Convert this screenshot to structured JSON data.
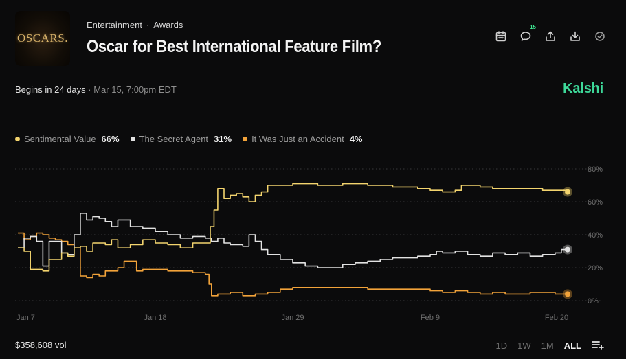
{
  "header": {
    "thumbnail_text": "OSCARS.",
    "category": "Entertainment",
    "subcategory": "Awards",
    "title": "Oscar for Best International Feature Film?",
    "comment_count": "15",
    "icons": [
      "calendar-icon",
      "comment-icon",
      "share-icon",
      "download-icon",
      "check-circle-icon"
    ]
  },
  "meta": {
    "begins": "Begins in 24 days",
    "separator": "·",
    "date": "Mar 15, 7:00pm EDT",
    "brand": "Kalshi"
  },
  "footer": {
    "volume": "$358,608 vol",
    "ranges": [
      "1D",
      "1W",
      "1M",
      "ALL"
    ],
    "active_range": "ALL"
  },
  "chart_data": {
    "type": "line",
    "ylim": [
      0,
      80
    ],
    "yticks": [
      "0%",
      "20%",
      "40%",
      "60%",
      "80%"
    ],
    "xlim": [
      0,
      44
    ],
    "xticks": [
      {
        "x": 0,
        "label": "Jan 7"
      },
      {
        "x": 11,
        "label": "Jan 18"
      },
      {
        "x": 22,
        "label": "Jan 29"
      },
      {
        "x": 33,
        "label": "Feb 9"
      },
      {
        "x": 44,
        "label": "Feb 20"
      }
    ],
    "grid": "dotted-horizontal",
    "legend": "top-left",
    "series": [
      {
        "name": "Sentimental Value",
        "label": "66%",
        "color": "#f3d46e",
        "values": [
          [
            0,
            32
          ],
          [
            0.5,
            30
          ],
          [
            1,
            19
          ],
          [
            1.5,
            19
          ],
          [
            2,
            18
          ],
          [
            2.5,
            25
          ],
          [
            3,
            25
          ],
          [
            3.5,
            29
          ],
          [
            4,
            27
          ],
          [
            4.5,
            32
          ],
          [
            5,
            33
          ],
          [
            5.5,
            30
          ],
          [
            6,
            35
          ],
          [
            7,
            34
          ],
          [
            7.5,
            37
          ],
          [
            8,
            32
          ],
          [
            9,
            34
          ],
          [
            10,
            37
          ],
          [
            11,
            35
          ],
          [
            12,
            34
          ],
          [
            13,
            32
          ],
          [
            14,
            35
          ],
          [
            15,
            35
          ],
          [
            15.4,
            45
          ],
          [
            15.7,
            55
          ],
          [
            16,
            68
          ],
          [
            16.5,
            62
          ],
          [
            17,
            64
          ],
          [
            17.5,
            65
          ],
          [
            18,
            63
          ],
          [
            18.5,
            60
          ],
          [
            19,
            64
          ],
          [
            19.5,
            66
          ],
          [
            20,
            70
          ],
          [
            22,
            71
          ],
          [
            24,
            70
          ],
          [
            26,
            71
          ],
          [
            28,
            70
          ],
          [
            30,
            69
          ],
          [
            32,
            68
          ],
          [
            33,
            67
          ],
          [
            34,
            66
          ],
          [
            35,
            67
          ],
          [
            35.5,
            70
          ],
          [
            37,
            69
          ],
          [
            38,
            68
          ],
          [
            40,
            68
          ],
          [
            42,
            67
          ],
          [
            43,
            67
          ],
          [
            44,
            66
          ]
        ]
      },
      {
        "name": "The Secret Agent",
        "label": "31%",
        "color": "#e2e2e2",
        "values": [
          [
            0,
            32
          ],
          [
            0.5,
            38
          ],
          [
            1,
            39
          ],
          [
            1.5,
            36
          ],
          [
            2,
            21
          ],
          [
            2.5,
            36
          ],
          [
            3,
            36
          ],
          [
            3.5,
            29
          ],
          [
            4,
            28
          ],
          [
            4.5,
            40
          ],
          [
            5,
            53
          ],
          [
            5.5,
            49
          ],
          [
            6,
            51
          ],
          [
            6.5,
            50
          ],
          [
            7,
            48
          ],
          [
            7.5,
            45
          ],
          [
            8,
            49
          ],
          [
            9,
            45
          ],
          [
            10,
            44
          ],
          [
            11,
            42
          ],
          [
            12,
            40
          ],
          [
            13,
            38
          ],
          [
            14,
            39
          ],
          [
            15,
            38
          ],
          [
            15.5,
            36
          ],
          [
            16,
            38
          ],
          [
            16.5,
            35
          ],
          [
            17,
            34
          ],
          [
            18,
            33
          ],
          [
            18.5,
            40
          ],
          [
            19,
            36
          ],
          [
            19.5,
            31
          ],
          [
            20,
            28
          ],
          [
            21,
            25
          ],
          [
            22,
            23
          ],
          [
            23,
            21
          ],
          [
            24,
            20
          ],
          [
            25,
            20
          ],
          [
            26,
            22
          ],
          [
            27,
            23
          ],
          [
            28,
            24
          ],
          [
            29,
            25
          ],
          [
            30,
            26
          ],
          [
            31,
            26
          ],
          [
            32,
            27
          ],
          [
            33,
            28
          ],
          [
            33.5,
            30
          ],
          [
            34,
            29
          ],
          [
            35,
            30
          ],
          [
            36,
            28
          ],
          [
            37,
            27
          ],
          [
            38,
            29
          ],
          [
            39,
            28
          ],
          [
            40,
            29
          ],
          [
            41,
            27
          ],
          [
            42,
            28
          ],
          [
            43,
            29
          ],
          [
            43.5,
            31
          ],
          [
            44,
            31
          ]
        ]
      },
      {
        "name": "It Was Just an Accident",
        "label": "4%",
        "color": "#f2a33a",
        "values": [
          [
            0,
            41
          ],
          [
            0.5,
            37
          ],
          [
            1,
            39
          ],
          [
            1.5,
            41
          ],
          [
            2,
            40
          ],
          [
            2.5,
            38
          ],
          [
            3,
            37
          ],
          [
            3.5,
            36
          ],
          [
            4,
            34
          ],
          [
            4.5,
            32
          ],
          [
            5,
            15
          ],
          [
            5.5,
            14
          ],
          [
            6,
            16
          ],
          [
            6.5,
            15
          ],
          [
            7,
            18
          ],
          [
            8,
            20
          ],
          [
            8.5,
            24
          ],
          [
            9,
            24
          ],
          [
            9.5,
            18
          ],
          [
            10,
            19
          ],
          [
            11,
            19
          ],
          [
            12,
            18
          ],
          [
            13,
            18
          ],
          [
            14,
            17
          ],
          [
            15,
            16
          ],
          [
            15.3,
            10
          ],
          [
            15.5,
            3
          ],
          [
            16,
            4
          ],
          [
            17,
            5
          ],
          [
            18,
            3
          ],
          [
            19,
            4
          ],
          [
            20,
            5
          ],
          [
            21,
            7
          ],
          [
            22,
            8
          ],
          [
            24,
            8
          ],
          [
            26,
            8
          ],
          [
            28,
            7
          ],
          [
            30,
            7
          ],
          [
            32,
            7
          ],
          [
            33,
            6
          ],
          [
            34,
            5
          ],
          [
            35,
            6
          ],
          [
            36,
            5
          ],
          [
            37,
            4
          ],
          [
            38,
            5
          ],
          [
            39,
            4
          ],
          [
            40,
            4
          ],
          [
            41,
            5
          ],
          [
            42,
            5
          ],
          [
            43,
            4
          ],
          [
            44,
            4
          ]
        ]
      }
    ]
  }
}
